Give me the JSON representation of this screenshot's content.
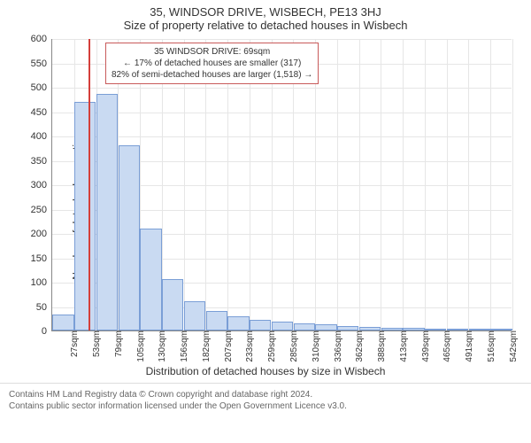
{
  "header": {
    "address": "35, WINDSOR DRIVE, WISBECH, PE13 3HJ",
    "subtitle": "Size of property relative to detached houses in Wisbech"
  },
  "chart": {
    "type": "histogram",
    "y_label": "Number of detached properties",
    "x_label": "Distribution of detached houses by size in Wisbech",
    "ylim": [
      0,
      600
    ],
    "y_ticks": [
      0,
      50,
      100,
      150,
      200,
      250,
      300,
      350,
      400,
      450,
      500,
      550,
      600
    ],
    "x_categories": [
      "27sqm",
      "53sqm",
      "79sqm",
      "105sqm",
      "130sqm",
      "156sqm",
      "182sqm",
      "207sqm",
      "233sqm",
      "259sqm",
      "285sqm",
      "310sqm",
      "336sqm",
      "362sqm",
      "388sqm",
      "413sqm",
      "439sqm",
      "465sqm",
      "491sqm",
      "516sqm",
      "542sqm"
    ],
    "values": [
      32,
      470,
      485,
      380,
      210,
      105,
      60,
      40,
      30,
      22,
      18,
      15,
      12,
      10,
      8,
      6,
      5,
      4,
      3,
      3,
      2
    ],
    "bar_fill": "#c9daf2",
    "bar_stroke": "#7a9ed6",
    "background_color": "#ffffff",
    "grid_color": "#e6e6e6",
    "marker": {
      "position_index": 1.65,
      "color": "#d43f3a"
    },
    "annotation": {
      "line1": "35 WINDSOR DRIVE: 69sqm",
      "line2": "← 17% of detached houses are smaller (317)",
      "line3": "82% of semi-detached houses are larger (1,518) →",
      "border_color": "#c85a5a"
    }
  },
  "footer": {
    "line1": "Contains HM Land Registry data © Crown copyright and database right 2024.",
    "line2": "Contains public sector information licensed under the Open Government Licence v3.0."
  }
}
